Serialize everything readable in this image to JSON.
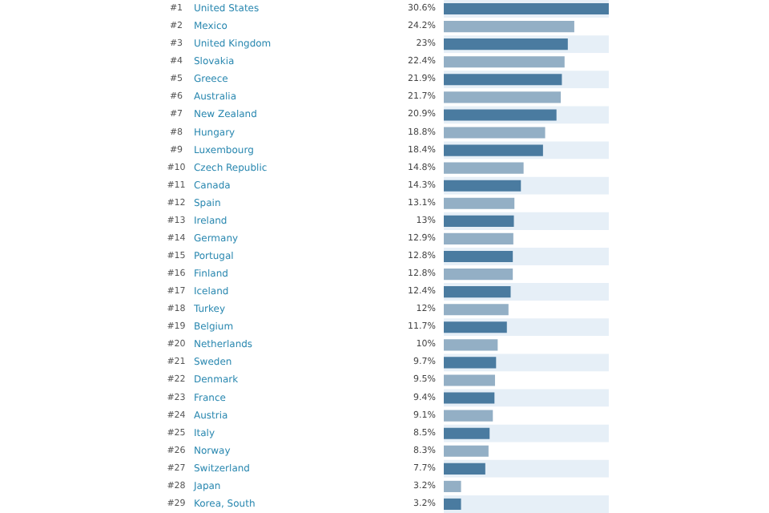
{
  "chart_data": {
    "type": "bar",
    "orientation": "horizontal",
    "categories": [
      "United States",
      "Mexico",
      "United Kingdom",
      "Slovakia",
      "Greece",
      "Australia",
      "New Zealand",
      "Hungary",
      "Luxembourg",
      "Czech Republic",
      "Canada",
      "Spain",
      "Ireland",
      "Germany",
      "Portugal",
      "Finland",
      "Iceland",
      "Turkey",
      "Belgium",
      "Netherlands",
      "Sweden",
      "Denmark",
      "France",
      "Austria",
      "Italy",
      "Norway",
      "Switzerland",
      "Japan",
      "Korea, South"
    ],
    "values": [
      30.6,
      24.2,
      23,
      22.4,
      21.9,
      21.7,
      20.9,
      18.8,
      18.4,
      14.8,
      14.3,
      13.1,
      13,
      12.9,
      12.8,
      12.8,
      12.4,
      12,
      11.7,
      10,
      9.7,
      9.5,
      9.4,
      9.1,
      8.5,
      8.3,
      7.7,
      3.2,
      3.2
    ],
    "colors": [
      "#4a7ba0",
      "#93afc5",
      "#4a7ba0",
      "#93afc5",
      "#4a7ba0",
      "#93afc5",
      "#4a7ba0",
      "#93afc5",
      "#4a7ba0",
      "#93afc5",
      "#4a7ba0",
      "#93afc5",
      "#4a7ba0",
      "#93afc5",
      "#4a7ba0",
      "#93afc5",
      "#4a7ba0",
      "#93afc5",
      "#4a7ba0",
      "#93afc5",
      "#4a7ba0",
      "#93afc5",
      "#4a7ba0",
      "#93afc5",
      "#4a7ba0",
      "#93afc5",
      "#4a7ba0",
      "#93afc5",
      "#4a7ba0"
    ],
    "value_labels": [
      "30.6%",
      "24.2%",
      "23%",
      "22.4%",
      "21.9%",
      "21.7%",
      "20.9%",
      "18.8%",
      "18.4%",
      "14.8%",
      "14.3%",
      "13.1%",
      "13%",
      "12.9%",
      "12.8%",
      "12.8%",
      "12.4%",
      "12%",
      "11.7%",
      "10%",
      "9.7%",
      "9.5%",
      "9.4%",
      "9.1%",
      "8.5%",
      "8.3%",
      "7.7%",
      "3.2%",
      "3.2%"
    ],
    "annotations": [
      "#1",
      "#2",
      "#3",
      "#4",
      "#5",
      "#6",
      "#7",
      "#8",
      "#9",
      "#10",
      "#11",
      "#12",
      "#13",
      "#14",
      "#15",
      "#16",
      "#17",
      "#18",
      "#19",
      "#20",
      "#21",
      "#22",
      "#23",
      "#24",
      "#25",
      "#26",
      "#27",
      "#28",
      "#29"
    ]
  }
}
